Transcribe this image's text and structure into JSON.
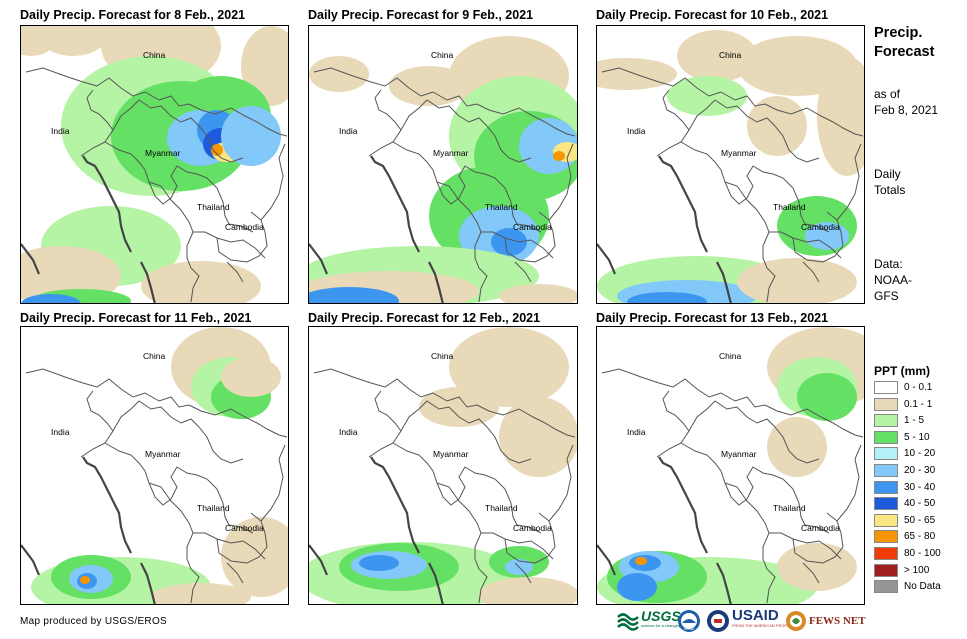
{
  "panels": [
    {
      "title": "Daily Precip. Forecast for 8 Feb., 2021"
    },
    {
      "title": "Daily Precip. Forecast for 9 Feb., 2021"
    },
    {
      "title": "Daily Precip. Forecast for 10 Feb., 2021"
    },
    {
      "title": "Daily Precip. Forecast for 11 Feb., 2021"
    },
    {
      "title": "Daily Precip. Forecast for 12 Feb., 2021"
    },
    {
      "title": "Daily Precip. Forecast for 13 Feb., 2021"
    }
  ],
  "country_labels": {
    "china": "China",
    "india": "India",
    "myanmar": "Myanmar",
    "thailand": "Thailand",
    "cambodia": "Cambodia"
  },
  "side": {
    "title_line1": "Precip.",
    "title_line2": "Forecast",
    "asof_line1": "as of",
    "asof_line2": "Feb 8, 2021",
    "daily_line1": "Daily",
    "daily_line2": "Totals",
    "data_line1": "Data:",
    "data_line2": "NOAA-",
    "data_line3": "GFS"
  },
  "legend": {
    "title": "PPT (mm)",
    "items": [
      {
        "label": "0 - 0.1",
        "color": "#ffffff"
      },
      {
        "label": "0.1 - 1",
        "color": "#e8d9b8"
      },
      {
        "label": "1 - 5",
        "color": "#b4f4a4"
      },
      {
        "label": "5 - 10",
        "color": "#64e064"
      },
      {
        "label": "10 - 20",
        "color": "#b4f0f8"
      },
      {
        "label": "20 - 30",
        "color": "#82c8f8"
      },
      {
        "label": "30 - 40",
        "color": "#3c96f0"
      },
      {
        "label": "40 - 50",
        "color": "#1e5adc"
      },
      {
        "label": "50 - 65",
        "color": "#fae682"
      },
      {
        "label": "65 - 80",
        "color": "#f59600"
      },
      {
        "label": "80 - 100",
        "color": "#f03c00"
      },
      {
        "label": "> 100",
        "color": "#a01e1e"
      },
      {
        "label": "No Data",
        "color": "#969696"
      }
    ]
  },
  "credit": "Map produced by USGS/EROS",
  "logos": {
    "usgs": "USGS",
    "usgs_tagline": "science for a changing world",
    "noaa": "NOAA",
    "usaid": "USAID",
    "usaid_tagline": "FROM THE AMERICAN PEOPLE",
    "fewsnet": "FEWS NET"
  }
}
